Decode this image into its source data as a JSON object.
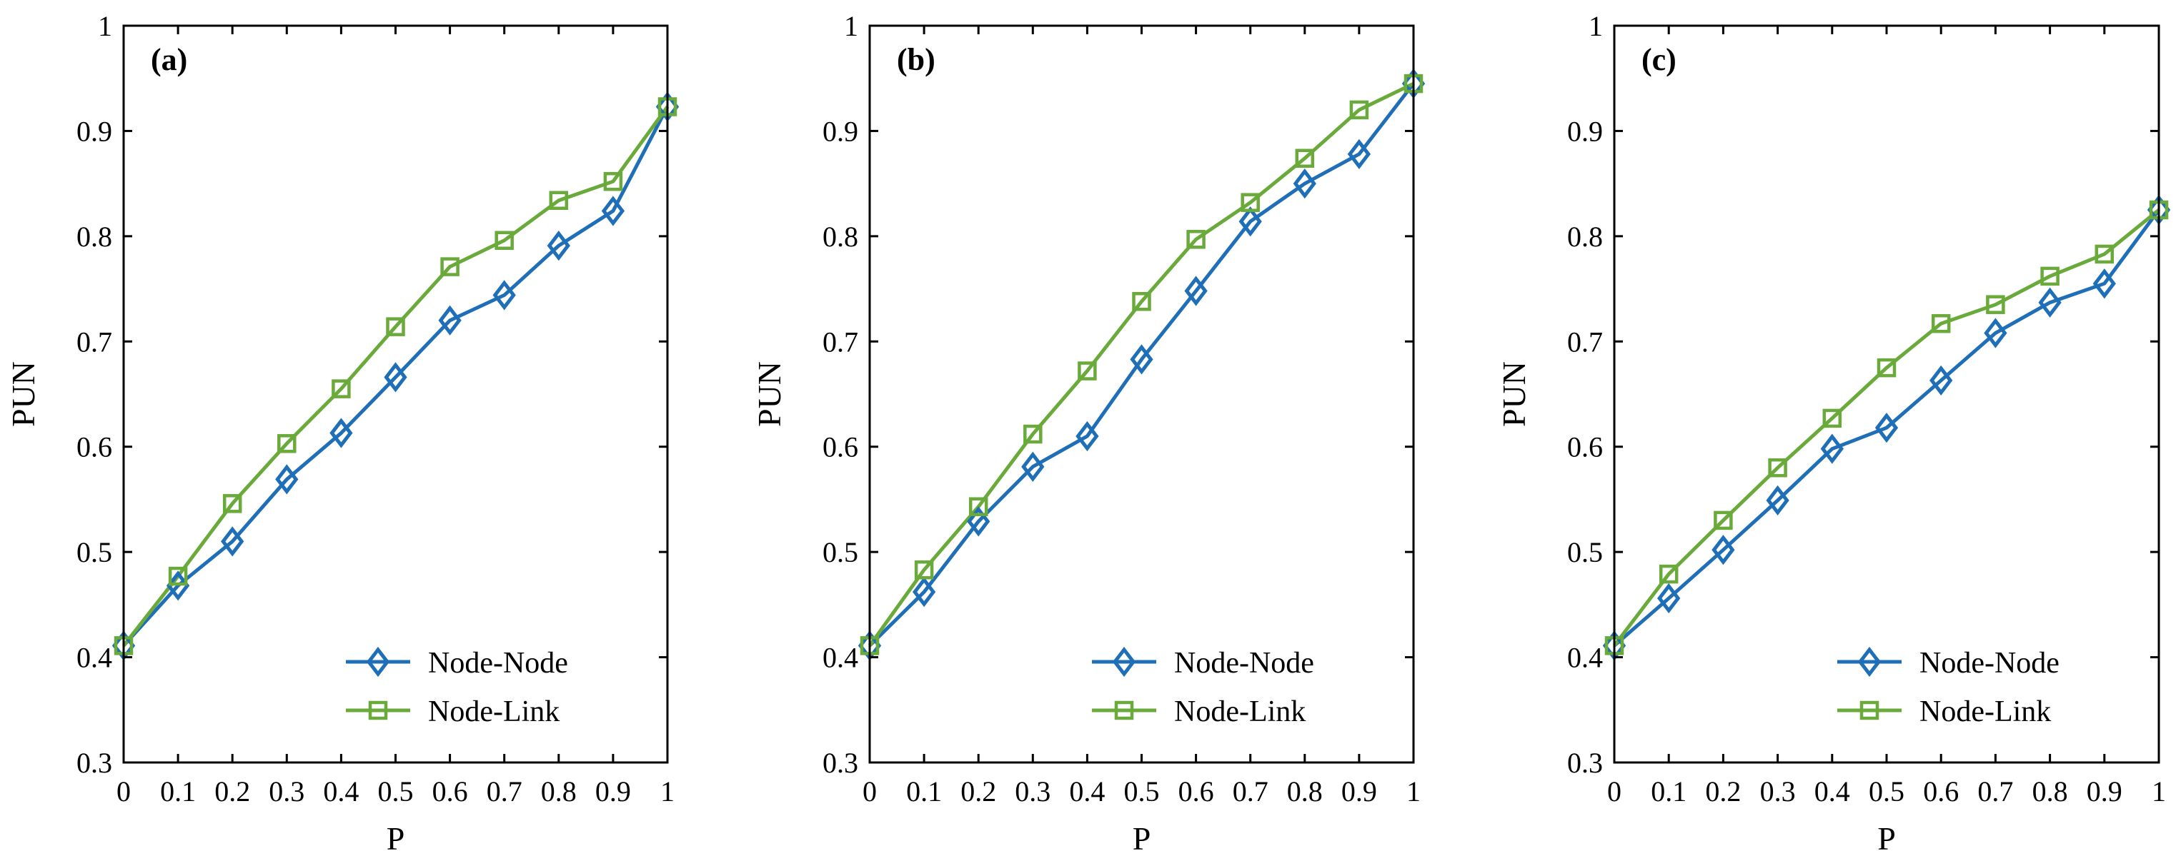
{
  "chart_data": [
    {
      "type": "line",
      "panel_label": "(a)",
      "xlabel": "P",
      "ylabel": "PUN",
      "xlim": [
        0,
        1
      ],
      "ylim": [
        0.3,
        1
      ],
      "x_tick_labels": [
        "0",
        "0.1",
        "0.2",
        "0.3",
        "0.4",
        "0.5",
        "0.6",
        "0.7",
        "0.8",
        "0.9",
        "1"
      ],
      "y_tick_labels": [
        "0.3",
        "0.4",
        "0.5",
        "0.6",
        "0.7",
        "0.8",
        "0.9",
        "1"
      ],
      "x": [
        0,
        0.1,
        0.2,
        0.3,
        0.4,
        0.5,
        0.6,
        0.7,
        0.8,
        0.9,
        1
      ],
      "legend_position": "bottom-right",
      "series": [
        {
          "name": "Node-Node",
          "color": "#1f6fb8",
          "marker": "diamond",
          "values": [
            0.411,
            0.468,
            0.51,
            0.569,
            0.613,
            0.666,
            0.72,
            0.744,
            0.791,
            0.824,
            0.923
          ]
        },
        {
          "name": "Node-Link",
          "color": "#6aaa3a",
          "marker": "square",
          "values": [
            0.411,
            0.477,
            0.546,
            0.603,
            0.655,
            0.714,
            0.771,
            0.796,
            0.834,
            0.852,
            0.923
          ]
        }
      ]
    },
    {
      "type": "line",
      "panel_label": "(b)",
      "xlabel": "P",
      "ylabel": "PUN",
      "xlim": [
        0,
        1
      ],
      "ylim": [
        0.3,
        1
      ],
      "x_tick_labels": [
        "0",
        "0.1",
        "0.2",
        "0.3",
        "0.4",
        "0.5",
        "0.6",
        "0.7",
        "0.8",
        "0.9",
        "1"
      ],
      "y_tick_labels": [
        "0.3",
        "0.4",
        "0.5",
        "0.6",
        "0.7",
        "0.8",
        "0.9",
        "1"
      ],
      "x": [
        0,
        0.1,
        0.2,
        0.3,
        0.4,
        0.5,
        0.6,
        0.7,
        0.8,
        0.9,
        1
      ],
      "legend_position": "bottom-right",
      "series": [
        {
          "name": "Node-Node",
          "color": "#1f6fb8",
          "marker": "diamond",
          "values": [
            0.411,
            0.462,
            0.529,
            0.581,
            0.61,
            0.683,
            0.748,
            0.814,
            0.85,
            0.878,
            0.945
          ]
        },
        {
          "name": "Node-Link",
          "color": "#6aaa3a",
          "marker": "square",
          "values": [
            0.411,
            0.483,
            0.543,
            0.612,
            0.672,
            0.738,
            0.797,
            0.832,
            0.874,
            0.92,
            0.945
          ]
        }
      ]
    },
    {
      "type": "line",
      "panel_label": "(c)",
      "xlabel": "P",
      "ylabel": "PUN",
      "xlim": [
        0,
        1
      ],
      "ylim": [
        0.3,
        1
      ],
      "x_tick_labels": [
        "0",
        "0.1",
        "0.2",
        "0.3",
        "0.4",
        "0.5",
        "0.6",
        "0.7",
        "0.8",
        "0.9",
        "1"
      ],
      "y_tick_labels": [
        "0.3",
        "0.4",
        "0.5",
        "0.6",
        "0.7",
        "0.8",
        "0.9",
        "1"
      ],
      "x": [
        0,
        0.1,
        0.2,
        0.3,
        0.4,
        0.5,
        0.6,
        0.7,
        0.8,
        0.9,
        1
      ],
      "legend_position": "bottom-right",
      "series": [
        {
          "name": "Node-Node",
          "color": "#1f6fb8",
          "marker": "diamond",
          "values": [
            0.411,
            0.456,
            0.502,
            0.549,
            0.598,
            0.618,
            0.663,
            0.708,
            0.737,
            0.755,
            0.825
          ]
        },
        {
          "name": "Node-Link",
          "color": "#6aaa3a",
          "marker": "square",
          "values": [
            0.411,
            0.479,
            0.53,
            0.58,
            0.627,
            0.675,
            0.717,
            0.735,
            0.762,
            0.783,
            0.825
          ]
        }
      ]
    }
  ]
}
